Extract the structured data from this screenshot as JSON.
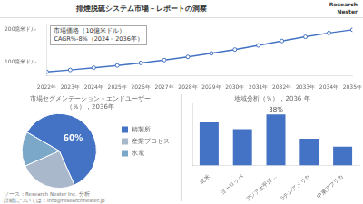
{
  "title": "排煙脱硫システム市場－レポートの洞察",
  "annotations": [
    "Research",
    "Nester",
    "ソース：Research Nester Inc. 分析",
    "詳細については：info@researchnester.jp"
  ],
  "chart_data": [
    {
      "type": "line",
      "categories": [
        "2022年",
        "2023年",
        "2024年",
        "2025年",
        "2026年",
        "2027年",
        "2028年",
        "2029年",
        "2030年",
        "2031年",
        "2032年",
        "2033年",
        "2034年",
        "2035年"
      ],
      "values": [
        68,
        74,
        81,
        88,
        96,
        105,
        115,
        126,
        138,
        151,
        165,
        178,
        190,
        200
      ],
      "color": "#4472c4",
      "marker": "circle",
      "ylim": [
        55,
        215
      ],
      "yticks": [
        {
          "value": 100,
          "label": "100億米ドル"
        },
        {
          "value": 200,
          "label": "200億米ドル"
        }
      ],
      "grid": false,
      "annotations": [
        "市場価格（10億米ドル）",
        "CAGR%-8%（2024－2036年）"
      ]
    },
    {
      "type": "pie",
      "title": "市場セグメンテーション－エンドユーザー",
      "subtitle": "（％），2036年",
      "categories": [
        "精製所",
        "産業プロセス",
        "水電"
      ],
      "values": [
        60,
        25,
        15
      ],
      "colors": [
        "#4472c4",
        "#aab8cc",
        "#7ba7c9"
      ],
      "value_labels": [
        "60%",
        null,
        null
      ],
      "legend": "right"
    },
    {
      "type": "bar",
      "title": "地域分析（％），2036 年",
      "categories": [
        "北米",
        "ヨーロッパ",
        "アジア太平洋…",
        "ラテンアメリカ",
        "中東アフリカ"
      ],
      "values": [
        32,
        27,
        38,
        20,
        14
      ],
      "color": "#4472c4",
      "value_labels": [
        null,
        null,
        "38%",
        null,
        null
      ],
      "ylim": [
        0,
        46
      ],
      "grid": false,
      "tick_labels": "x"
    }
  ]
}
